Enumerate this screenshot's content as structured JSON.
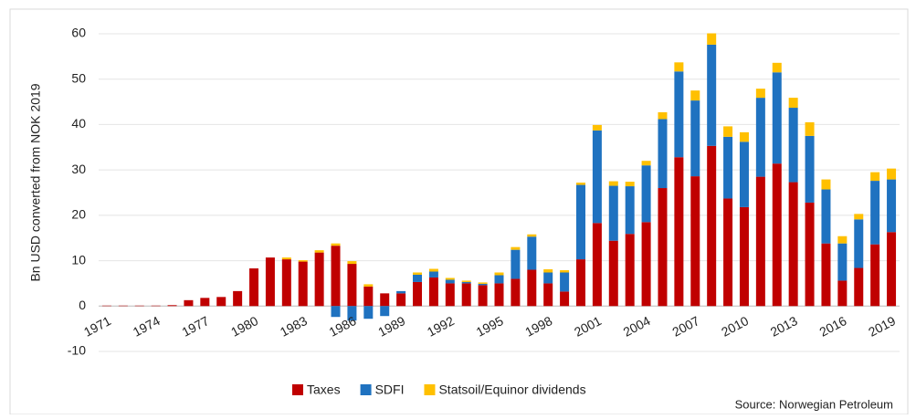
{
  "chart_data": {
    "type": "stacked_bar",
    "y_label": "Bn USD converted from NOK 2019",
    "source": "Source: Norwegian Petroleum",
    "categories": [
      "1971",
      null,
      null,
      "1974",
      null,
      null,
      "1977",
      null,
      null,
      "1980",
      null,
      null,
      "1983",
      null,
      null,
      "1986",
      null,
      null,
      "1989",
      null,
      null,
      "1992",
      null,
      null,
      "1995",
      null,
      null,
      "1998",
      null,
      null,
      "2001",
      null,
      null,
      "2004",
      null,
      null,
      "2007",
      null,
      null,
      "2010",
      null,
      null,
      "2013",
      null,
      null,
      "2016",
      null,
      null,
      "2019"
    ],
    "series": [
      {
        "name": "Taxes",
        "color": "#c00000",
        "values": [
          0.1,
          0.1,
          0.1,
          0.1,
          0.2,
          1.3,
          1.8,
          2.0,
          3.3,
          8.3,
          10.7,
          10.3,
          9.8,
          11.8,
          13.3,
          9.3,
          4.3,
          2.8,
          2.8,
          5.3,
          6.3,
          5.0,
          5.0,
          4.6,
          5.0,
          6.0,
          8.0,
          5.0,
          3.2,
          10.3,
          18.3,
          14.4,
          15.9,
          18.5,
          26.0,
          32.8,
          28.6,
          35.3,
          23.7,
          21.8,
          28.5,
          31.4,
          27.3,
          22.8,
          13.8,
          5.6,
          8.4,
          13.6,
          16.3
        ]
      },
      {
        "name": "SDFI",
        "color": "#1f72c0",
        "values": [
          0,
          0,
          0,
          0,
          0,
          0,
          0,
          0,
          0,
          0,
          0,
          0,
          0,
          0,
          -2.4,
          -3.2,
          -2.8,
          -2.2,
          0.5,
          1.6,
          1.3,
          0.8,
          0.3,
          0.3,
          1.8,
          6.4,
          7.3,
          2.4,
          4.2,
          16.4,
          20.4,
          12.1,
          10.5,
          12.5,
          15.2,
          18.9,
          16.7,
          22.3,
          13.6,
          14.4,
          17.4,
          20.1,
          16.4,
          14.7,
          11.9,
          8.2,
          10.7,
          14.0,
          11.6
        ]
      },
      {
        "name": "Statsoil/Equinor dividends",
        "color": "#ffc000",
        "values": [
          0,
          0,
          0,
          0,
          0,
          0,
          0,
          0,
          0,
          0,
          0,
          0.4,
          0.3,
          0.5,
          0.5,
          0.6,
          0.5,
          0,
          0,
          0.5,
          0.6,
          0.4,
          0.3,
          0.3,
          0.6,
          0.6,
          0.5,
          0.7,
          0.5,
          0.5,
          1.2,
          1.0,
          1.0,
          1.0,
          1.5,
          2.0,
          2.2,
          2.5,
          2.3,
          2.1,
          2.0,
          2.1,
          2.2,
          3.0,
          2.2,
          1.6,
          1.2,
          1.9,
          2.4
        ]
      }
    ],
    "ylim": [
      -10,
      60
    ],
    "yticks": [
      -10,
      0,
      10,
      20,
      30,
      40,
      50,
      60
    ],
    "grid": true
  }
}
